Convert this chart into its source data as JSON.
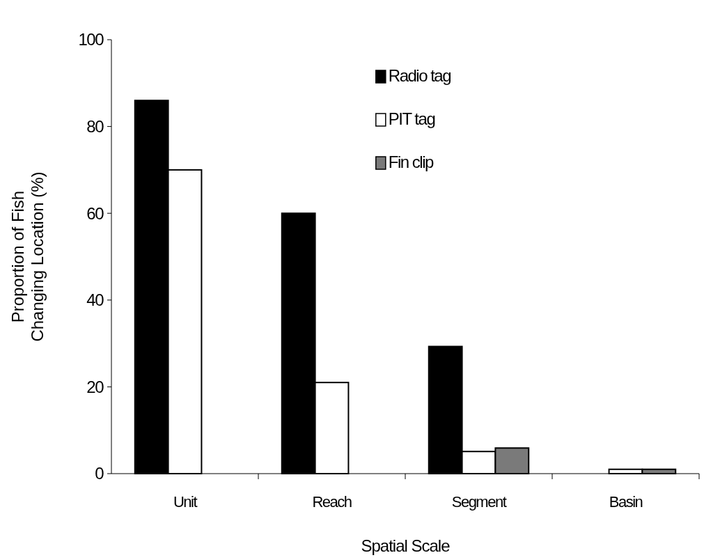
{
  "chart_data": {
    "type": "bar",
    "xlabel": "Spatial Scale",
    "ylabel": "Proportion of Fish\nChanging Location (%)",
    "categories": [
      "Unit",
      "Reach",
      "Segment",
      "Basin"
    ],
    "series": [
      {
        "name": "Radio tag",
        "color": "#000000",
        "values": [
          86,
          60,
          29.3,
          0
        ]
      },
      {
        "name": "PIT tag",
        "color": "#ffffff",
        "values": [
          70,
          21,
          5.1,
          1
        ]
      },
      {
        "name": "Fin clip",
        "color": "#7a7a7a",
        "values": [
          0,
          0,
          5.9,
          1
        ]
      }
    ],
    "ylim": [
      0,
      100
    ],
    "yticks": [
      0,
      20,
      40,
      60,
      80,
      100
    ],
    "legend": "top right",
    "grid": false
  }
}
